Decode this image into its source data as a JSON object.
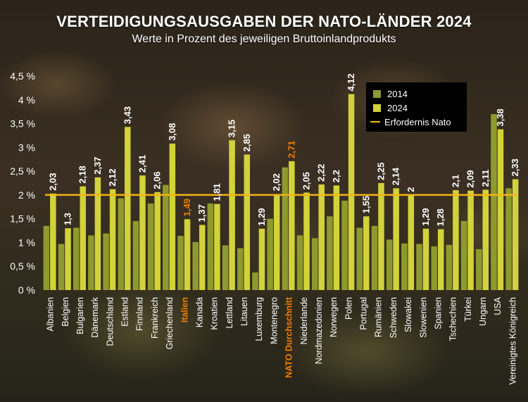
{
  "title": "VERTEIDIGUNGSAUSGABEN DER NATO-LÄNDER 2024",
  "subtitle": "Werte in Prozent des jeweiligen Bruttoinlandprodukts",
  "colors": {
    "series_2014": "#8f9a2e",
    "series_2024": "#d2d23a",
    "target_line": "#f2b418",
    "highlight": "#f07d00"
  },
  "legend": {
    "item_2014": "2014",
    "item_2024": "2024",
    "item_target": "Erfordernis Nato"
  },
  "chart_data": {
    "type": "bar",
    "title": "VERTEIDIGUNGSAUSGABEN DER NATO-LÄNDER 2024",
    "subtitle": "Werte in Prozent des jeweiligen Bruttoinlandprodukts",
    "ylim": [
      0,
      4.5
    ],
    "y_ticks": [
      "0 %",
      "0,5 %",
      "1 %",
      "1,5 %",
      "2 %",
      "2,5 %",
      "3 %",
      "3,5 %",
      "4 %",
      "4,5 %"
    ],
    "grid": false,
    "legend_position": "top-right",
    "reference_line": {
      "name": "Erfordernis Nato",
      "value": 2.0
    },
    "highlighted_categories": [
      "Italien",
      "NATO Durchschnitt"
    ],
    "categories": [
      "Albanien",
      "Belgien",
      "Bulgarien",
      "Dänemark",
      "Deutschland",
      "Estland",
      "Finnland",
      "Frankreich",
      "Griechenland",
      "Italien",
      "Kanada",
      "Kroatien",
      "Lettland",
      "Litauen",
      "Luxemburg",
      "Montenegro",
      "NATO Durchschnitt",
      "Niederlande",
      "Nordmazedonien",
      "Norwegen",
      "Polen",
      "Portugal",
      "Rumänien",
      "Schweden",
      "Slowakei",
      "Slowenien",
      "Spanien",
      "Tschechien",
      "Türkei",
      "Ungarn",
      "USA",
      "Vereinigtes Königreich"
    ],
    "series": [
      {
        "name": "2014",
        "values": [
          1.35,
          0.97,
          1.31,
          1.15,
          1.19,
          1.93,
          1.45,
          1.82,
          2.21,
          1.14,
          1.01,
          1.82,
          0.94,
          0.88,
          0.37,
          1.5,
          2.58,
          1.15,
          1.09,
          1.55,
          1.88,
          1.31,
          1.35,
          1.06,
          0.98,
          0.97,
          0.92,
          0.95,
          1.45,
          0.86,
          3.7,
          2.14
        ]
      },
      {
        "name": "2024",
        "values": [
          2.03,
          1.3,
          2.18,
          2.37,
          2.12,
          3.43,
          2.41,
          2.06,
          3.08,
          1.49,
          1.37,
          1.81,
          3.15,
          2.85,
          1.29,
          2.02,
          2.71,
          2.05,
          2.22,
          2.2,
          4.12,
          1.55,
          2.25,
          2.14,
          2.0,
          1.29,
          1.28,
          2.1,
          2.09,
          2.11,
          3.38,
          2.33
        ],
        "labels": [
          "2,03",
          "1,3",
          "2,18",
          "2,37",
          "2,12",
          "3,43",
          "2,41",
          "2,06",
          "3,08",
          "1,49",
          "1,37",
          "1,81",
          "3,15",
          "2,85",
          "1,29",
          "2,02",
          "2,71",
          "2,05",
          "2,22",
          "2,2",
          "4,12",
          "1,55",
          "2,25",
          "2,14",
          "2",
          "1,29",
          "1,28",
          "2,1",
          "2,09",
          "2,11",
          "3,38",
          "2,33"
        ]
      }
    ]
  }
}
